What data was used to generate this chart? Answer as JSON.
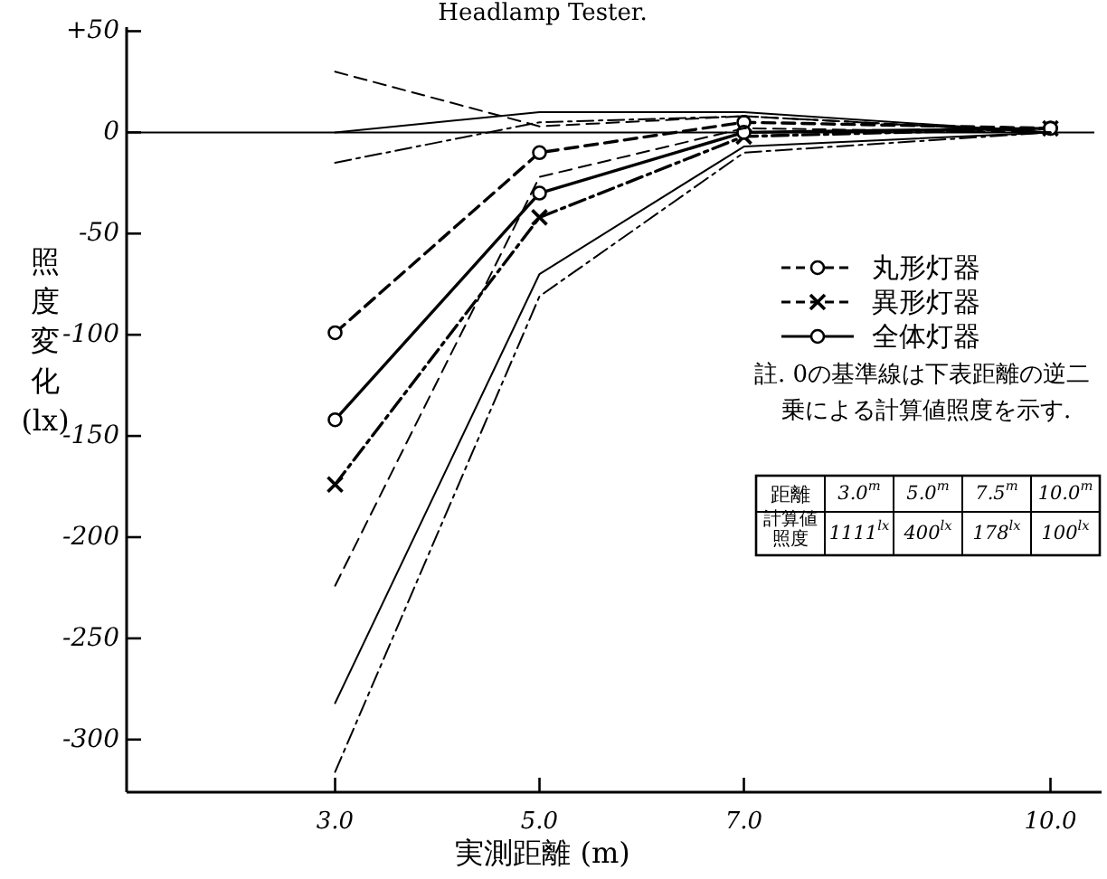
{
  "chart_data": {
    "type": "line",
    "title": "Headlamp Tester.",
    "xlabel": "実測距離 (m)",
    "ylabel": "照度変化 (lx)",
    "x": [
      3,
      5,
      7,
      10
    ],
    "series": [
      {
        "name": "丸形灯器",
        "color": "#000000",
        "line_style": "dashed",
        "marker": "circle",
        "values": [
          -99,
          -10,
          5,
          2
        ]
      },
      {
        "name": "異形灯器",
        "color": "#000000",
        "line_style": "dashdot",
        "marker": "cross",
        "values": [
          -174,
          -42,
          -2,
          2
        ]
      },
      {
        "name": "全体灯器",
        "color": "#000000",
        "line_style": "solid",
        "marker": "circle",
        "values": [
          -142,
          -30,
          0,
          2
        ]
      },
      {
        "color": "#000000",
        "line_style": "dashed",
        "values": [
          30,
          3,
          8,
          0
        ]
      },
      {
        "color": "#000000",
        "line_style": "dashed",
        "values": [
          -224,
          -22,
          2,
          0
        ]
      },
      {
        "color": "#000000",
        "line_style": "solid",
        "values": [
          0,
          10,
          10,
          0
        ]
      },
      {
        "color": "#000000",
        "line_style": "solid",
        "values": [
          -282,
          -70,
          -7,
          0
        ]
      },
      {
        "color": "#000000",
        "line_style": "dashdot",
        "values": [
          -15,
          5,
          8,
          0
        ]
      },
      {
        "color": "#000000",
        "line_style": "dashdot",
        "values": [
          -316,
          -81,
          -10,
          0
        ]
      }
    ],
    "xlim": [
      0.96,
      10.5
    ],
    "ylim": [
      -326,
      52
    ],
    "xticks": [
      {
        "value": 3,
        "label": "3.0"
      },
      {
        "value": 5,
        "label": "5.0"
      },
      {
        "value": 7,
        "label": "7.0"
      },
      {
        "value": 10,
        "label": "10.0"
      }
    ],
    "yticks": [
      {
        "value": 50,
        "label": "+50"
      },
      0,
      -50,
      -100,
      -150,
      -200,
      -250,
      -300
    ],
    "ref_lines": [
      {
        "axis": "y",
        "value": 0
      }
    ],
    "legend": "right",
    "grid": false,
    "annotations": [
      "註. 0の基準線は下表距離の逆二乗による計算値照度を示す.",
      "距離",
      "3.0$^{m}$",
      "5.0$^{m}$",
      "7.5$^{m}$",
      "10.0$^{m}$",
      "計算値照度",
      "1111$^{lx}$",
      "400$^{lx}$",
      "178$^{lx}$",
      "100$^{lx}$"
    ]
  }
}
